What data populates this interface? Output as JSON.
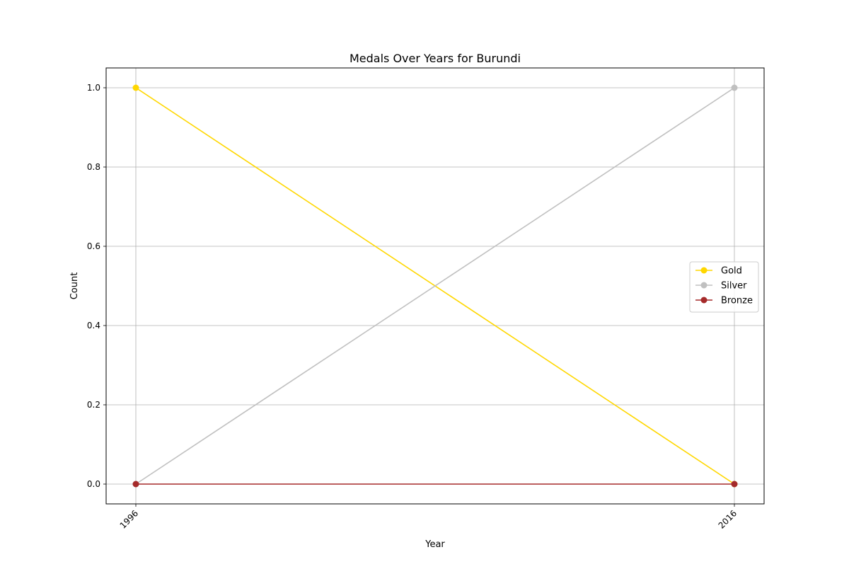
{
  "chart_data": {
    "type": "line",
    "title": "Medals Over Years for Burundi",
    "xlabel": "Year",
    "ylabel": "Count",
    "x": [
      "1996",
      "2016"
    ],
    "xtick_labels": [
      "1996",
      "2016"
    ],
    "ylim": [
      -0.05,
      1.05
    ],
    "yticks": [
      0.0,
      0.2,
      0.4,
      0.6,
      0.8,
      1.0
    ],
    "ytick_labels": [
      "0.0",
      "0.2",
      "0.4",
      "0.6",
      "0.8",
      "1.0"
    ],
    "grid": true,
    "legend_position": "center-right",
    "series": [
      {
        "name": "Gold",
        "values": [
          1,
          0
        ],
        "color": "#FFD700"
      },
      {
        "name": "Silver",
        "values": [
          0,
          1
        ],
        "color": "#C0C0C0"
      },
      {
        "name": "Bronze",
        "values": [
          0,
          0
        ],
        "color": "#A52A2A"
      }
    ]
  }
}
